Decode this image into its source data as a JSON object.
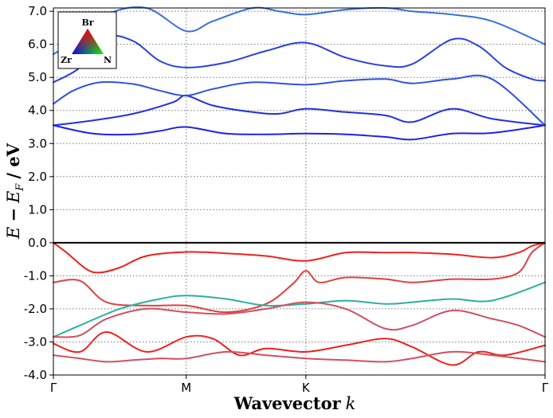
{
  "chart_data": {
    "type": "line",
    "title": "",
    "xlabel": {
      "main": "Wavevector",
      "var": "k"
    },
    "ylabel": {
      "var": "E",
      "minus": "−",
      "sub_var": "E",
      "subscript": "F",
      "unit": "/ eV"
    },
    "ylim": [
      -4.0,
      7.1
    ],
    "yticks": [
      -4.0,
      -3.0,
      -2.0,
      -1.0,
      0.0,
      1.0,
      2.0,
      3.0,
      4.0,
      5.0,
      6.0,
      7.0
    ],
    "ytick_labels": [
      "-4.0",
      "-3.0",
      "-2.0",
      "-1.0",
      "0.0",
      "1.0",
      "2.0",
      "3.0",
      "4.0",
      "5.0",
      "6.0",
      "7.0"
    ],
    "kpath": [
      {
        "label": "Γ",
        "pos": 0.0
      },
      {
        "label": "M",
        "pos": 1.0
      },
      {
        "label": "K",
        "pos": 1.9
      },
      {
        "label": "Γ",
        "pos": 3.7
      }
    ],
    "fermi_level": 0.0,
    "grid": true,
    "legend": {
      "placement": "top-left",
      "type": "color-triangle",
      "labels": {
        "top": "Br",
        "left": "Zr",
        "right": "N"
      },
      "colors": {
        "top": "#ff0000",
        "left": "#0000ff",
        "right": "#00ff00"
      }
    },
    "series": [
      {
        "color": "#2020e8",
        "x": [
          0.0,
          0.3,
          0.6,
          0.8,
          1.0,
          1.3,
          1.6,
          1.9,
          2.2,
          2.5,
          2.7,
          3.0,
          3.3,
          3.7
        ],
        "y": [
          3.55,
          3.3,
          3.28,
          3.38,
          3.5,
          3.3,
          3.28,
          3.3,
          3.28,
          3.2,
          3.12,
          3.3,
          3.32,
          3.55
        ]
      },
      {
        "color": "#2030e0",
        "x": [
          0.0,
          0.3,
          0.6,
          0.9,
          1.0,
          1.2,
          1.5,
          1.7,
          1.9,
          2.2,
          2.5,
          2.7,
          3.0,
          3.3,
          3.7
        ],
        "y": [
          3.55,
          3.7,
          3.9,
          4.25,
          4.45,
          4.15,
          3.95,
          3.9,
          4.05,
          3.95,
          3.85,
          3.65,
          4.05,
          3.75,
          3.55
        ]
      },
      {
        "color": "#3050e0",
        "x": [
          0.0,
          0.15,
          0.35,
          0.6,
          0.8,
          1.0,
          1.2,
          1.5,
          1.9,
          2.2,
          2.5,
          2.7,
          3.0,
          3.3,
          3.7
        ],
        "y": [
          4.2,
          4.6,
          4.85,
          4.8,
          4.6,
          4.45,
          4.65,
          4.85,
          4.78,
          4.9,
          4.95,
          4.82,
          4.95,
          4.95,
          3.55
        ]
      },
      {
        "color": "#2a40e0",
        "x": [
          0.0,
          0.2,
          0.4,
          0.6,
          0.8,
          1.0,
          1.3,
          1.6,
          1.9,
          2.2,
          2.5,
          2.7,
          3.0,
          3.2,
          3.4,
          3.6,
          3.7
        ],
        "y": [
          4.85,
          5.3,
          6.2,
          6.1,
          5.5,
          5.3,
          5.45,
          5.8,
          6.05,
          5.6,
          5.35,
          5.4,
          6.15,
          5.95,
          5.3,
          4.95,
          4.9
        ]
      },
      {
        "color": "#3a70d8",
        "x": [
          0.0,
          0.2,
          0.4,
          0.7,
          1.0,
          1.2,
          1.5,
          1.7,
          1.9,
          2.2,
          2.5,
          2.7,
          3.0,
          3.3,
          3.7
        ],
        "y": [
          5.7,
          6.2,
          6.9,
          7.1,
          6.4,
          6.7,
          7.1,
          7.0,
          6.9,
          7.05,
          7.1,
          7.0,
          6.9,
          6.7,
          6.0
        ]
      },
      {
        "color": "#ee2020",
        "x": [
          0.0,
          0.1,
          0.25,
          0.35,
          0.5,
          0.7,
          1.0,
          1.3,
          1.6,
          1.9,
          2.2,
          2.5,
          2.7,
          3.0,
          3.3,
          3.5,
          3.6,
          3.7
        ],
        "y": [
          0.0,
          -0.3,
          -0.8,
          -0.9,
          -0.75,
          -0.4,
          -0.28,
          -0.32,
          -0.4,
          -0.55,
          -0.3,
          -0.3,
          -0.3,
          -0.35,
          -0.45,
          -0.3,
          -0.1,
          0.0
        ]
      },
      {
        "color": "#e04040",
        "x": [
          0.0,
          0.2,
          0.4,
          0.7,
          1.0,
          1.3,
          1.6,
          1.8,
          1.9,
          2.0,
          2.2,
          2.5,
          2.7,
          3.0,
          3.3,
          3.5,
          3.6,
          3.7
        ],
        "y": [
          -1.2,
          -1.15,
          -1.8,
          -1.9,
          -1.9,
          -2.1,
          -1.85,
          -1.25,
          -0.85,
          -1.2,
          -1.05,
          -1.1,
          -1.2,
          -1.1,
          -1.1,
          -0.9,
          -0.3,
          0.0
        ]
      },
      {
        "color": "#2ab0a0",
        "x": [
          0.0,
          0.2,
          0.5,
          0.8,
          1.0,
          1.3,
          1.6,
          1.9,
          2.2,
          2.5,
          2.7,
          3.0,
          3.3,
          3.7
        ],
        "y": [
          -2.85,
          -2.5,
          -2.0,
          -1.7,
          -1.6,
          -1.7,
          -1.9,
          -1.85,
          -1.75,
          -1.85,
          -1.8,
          -1.7,
          -1.75,
          -1.2
        ]
      },
      {
        "color": "#d05060",
        "x": [
          0.0,
          0.2,
          0.4,
          0.7,
          1.0,
          1.3,
          1.6,
          1.9,
          2.2,
          2.5,
          2.7,
          3.0,
          3.3,
          3.5,
          3.7
        ],
        "y": [
          -2.85,
          -2.8,
          -2.3,
          -2.0,
          -2.1,
          -2.15,
          -2.0,
          -1.8,
          -2.0,
          -2.6,
          -2.5,
          -2.05,
          -2.3,
          -2.5,
          -2.85
        ]
      },
      {
        "color": "#ee2020",
        "x": [
          0.0,
          0.2,
          0.4,
          0.7,
          1.0,
          1.2,
          1.4,
          1.6,
          1.9,
          2.2,
          2.5,
          2.7,
          3.0,
          3.2,
          3.4,
          3.7
        ],
        "y": [
          -3.05,
          -3.3,
          -2.7,
          -3.3,
          -2.85,
          -2.9,
          -3.4,
          -3.2,
          -3.3,
          -3.1,
          -2.9,
          -3.15,
          -3.7,
          -3.3,
          -3.4,
          -3.1
        ]
      },
      {
        "color": "#d05060",
        "x": [
          0.0,
          0.2,
          0.4,
          0.6,
          0.8,
          1.0,
          1.3,
          1.6,
          1.9,
          2.2,
          2.5,
          2.7,
          3.0,
          3.3,
          3.7
        ],
        "y": [
          -3.4,
          -3.5,
          -3.6,
          -3.55,
          -3.5,
          -3.5,
          -3.3,
          -3.4,
          -3.5,
          -3.55,
          -3.6,
          -3.5,
          -3.3,
          -3.4,
          -3.6
        ]
      }
    ]
  }
}
